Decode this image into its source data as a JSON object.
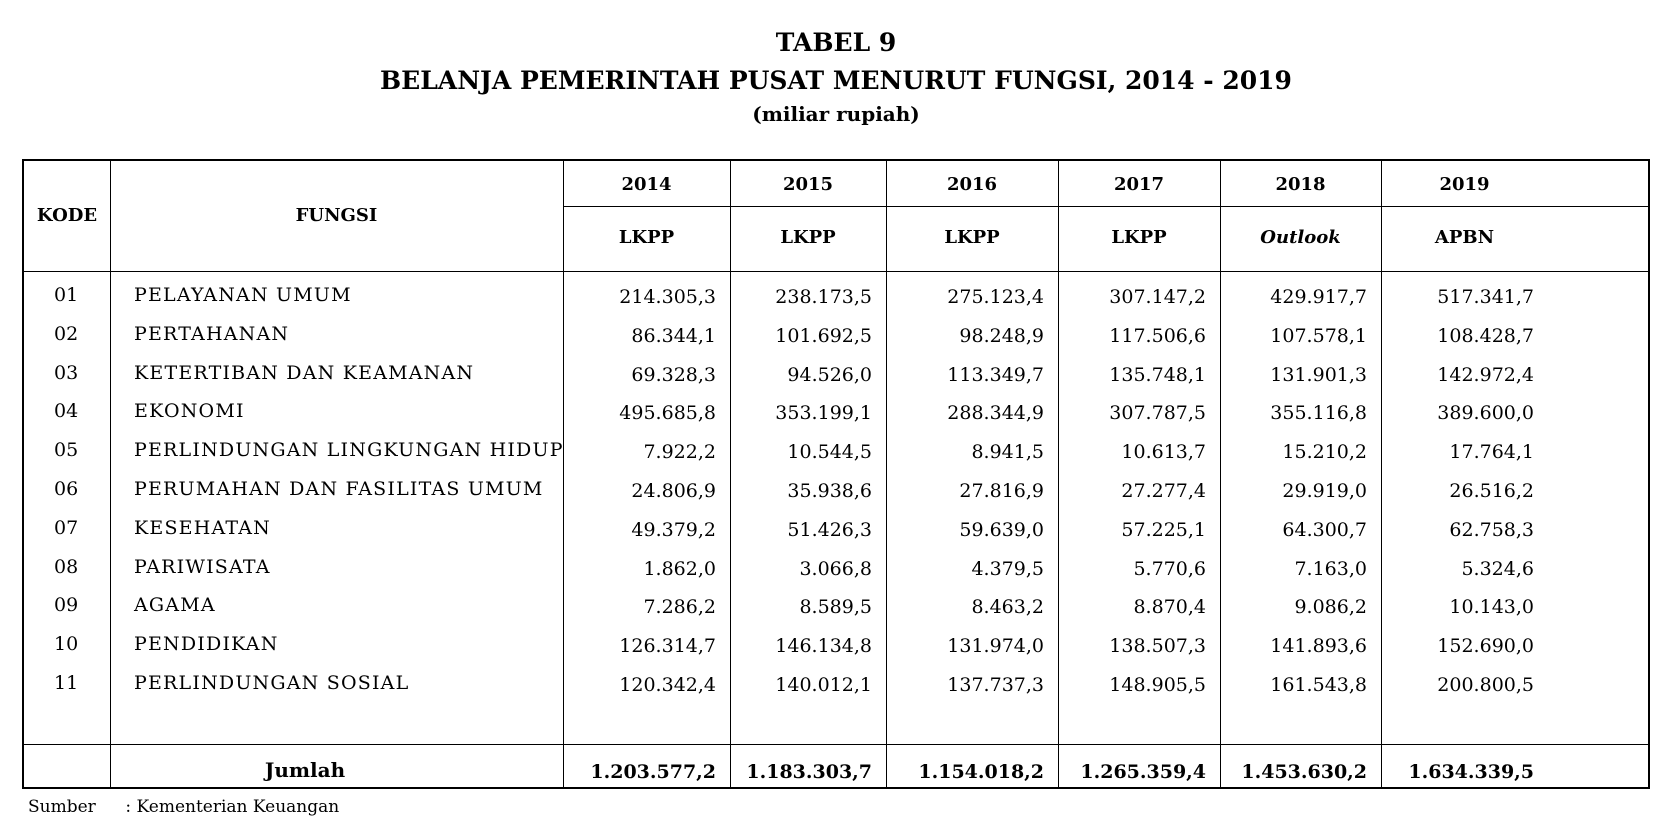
{
  "title": "TABEL 9",
  "subtitle": "BELANJA PEMERINTAH PUSAT MENURUT FUNGSI, 2014 - 2019",
  "unit": "(miliar rupiah)",
  "headers": {
    "kode": "KODE",
    "fungsi": "FUNGSI",
    "years": [
      "2014",
      "2015",
      "2016",
      "2017",
      "2018",
      "2019"
    ],
    "sources": [
      "LKPP",
      "LKPP",
      "LKPP",
      "LKPP",
      "Outlook",
      "APBN"
    ]
  },
  "rows": [
    {
      "kode": "01",
      "fungsi": "PELAYANAN UMUM",
      "values": [
        "214.305,3",
        "238.173,5",
        "275.123,4",
        "307.147,2",
        "429.917,7",
        "517.341,7"
      ]
    },
    {
      "kode": "02",
      "fungsi": "PERTAHANAN",
      "values": [
        "86.344,1",
        "101.692,5",
        "98.248,9",
        "117.506,6",
        "107.578,1",
        "108.428,7"
      ]
    },
    {
      "kode": "03",
      "fungsi": "KETERTIBAN DAN KEAMANAN",
      "values": [
        "69.328,3",
        "94.526,0",
        "113.349,7",
        "135.748,1",
        "131.901,3",
        "142.972,4"
      ]
    },
    {
      "kode": "04",
      "fungsi": "EKONOMI",
      "values": [
        "495.685,8",
        "353.199,1",
        "288.344,9",
        "307.787,5",
        "355.116,8",
        "389.600,0"
      ]
    },
    {
      "kode": "05",
      "fungsi": "PERLINDUNGAN LINGKUNGAN HIDUP",
      "values": [
        "7.922,2",
        "10.544,5",
        "8.941,5",
        "10.613,7",
        "15.210,2",
        "17.764,1"
      ]
    },
    {
      "kode": "06",
      "fungsi": "PERUMAHAN DAN FASILITAS UMUM",
      "values": [
        "24.806,9",
        "35.938,6",
        "27.816,9",
        "27.277,4",
        "29.919,0",
        "26.516,2"
      ]
    },
    {
      "kode": "07",
      "fungsi": "KESEHATAN",
      "values": [
        "49.379,2",
        "51.426,3",
        "59.639,0",
        "57.225,1",
        "64.300,7",
        "62.758,3"
      ]
    },
    {
      "kode": "08",
      "fungsi": "PARIWISATA",
      "values": [
        "1.862,0",
        "3.066,8",
        "4.379,5",
        "5.770,6",
        "7.163,0",
        "5.324,6"
      ]
    },
    {
      "kode": "09",
      "fungsi": "AGAMA",
      "values": [
        "7.286,2",
        "8.589,5",
        "8.463,2",
        "8.870,4",
        "9.086,2",
        "10.143,0"
      ]
    },
    {
      "kode": "10",
      "fungsi": "PENDIDIKAN",
      "values": [
        "126.314,7",
        "146.134,8",
        "131.974,0",
        "138.507,3",
        "141.893,6",
        "152.690,0"
      ]
    },
    {
      "kode": "11",
      "fungsi": "PERLINDUNGAN SOSIAL",
      "values": [
        "120.342,4",
        "140.012,1",
        "137.737,3",
        "148.905,5",
        "161.543,8",
        "200.800,5"
      ]
    }
  ],
  "total": {
    "label": "Jumlah",
    "values": [
      "1.203.577,2",
      "1.183.303,7",
      "1.154.018,2",
      "1.265.359,4",
      "1.453.630,2",
      "1.634.339,5"
    ]
  },
  "footer": {
    "label": "Sumber",
    "text": ": Kementerian Keuangan"
  }
}
